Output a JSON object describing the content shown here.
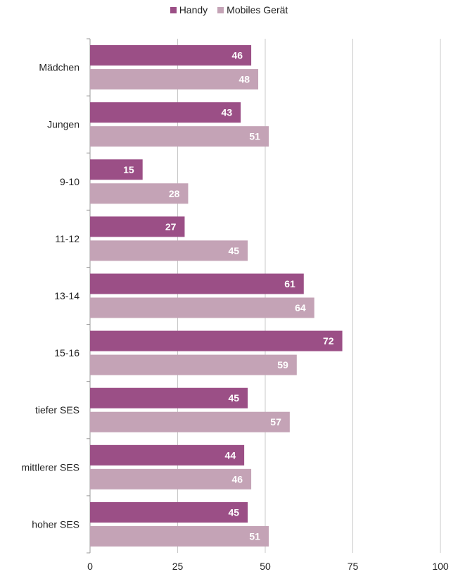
{
  "chart_data": {
    "type": "bar",
    "orientation": "horizontal",
    "categories": [
      "Mädchen",
      "Jungen",
      "9-10",
      "11-12",
      "13-14",
      "15-16",
      "tiefer SES",
      "mittlerer SES",
      "hoher SES"
    ],
    "series": [
      {
        "name": "Handy",
        "color": "#9b4f86",
        "values": [
          46,
          43,
          15,
          27,
          61,
          72,
          45,
          44,
          45
        ]
      },
      {
        "name": "Mobiles Gerät",
        "color": "#c4a3b6",
        "values": [
          48,
          51,
          28,
          45,
          64,
          59,
          57,
          46,
          51
        ]
      }
    ],
    "xlim": [
      0,
      100
    ],
    "xticks": [
      0,
      25,
      50,
      75,
      100
    ],
    "grid": true,
    "legend_position": "top-center",
    "data_labels": true
  }
}
